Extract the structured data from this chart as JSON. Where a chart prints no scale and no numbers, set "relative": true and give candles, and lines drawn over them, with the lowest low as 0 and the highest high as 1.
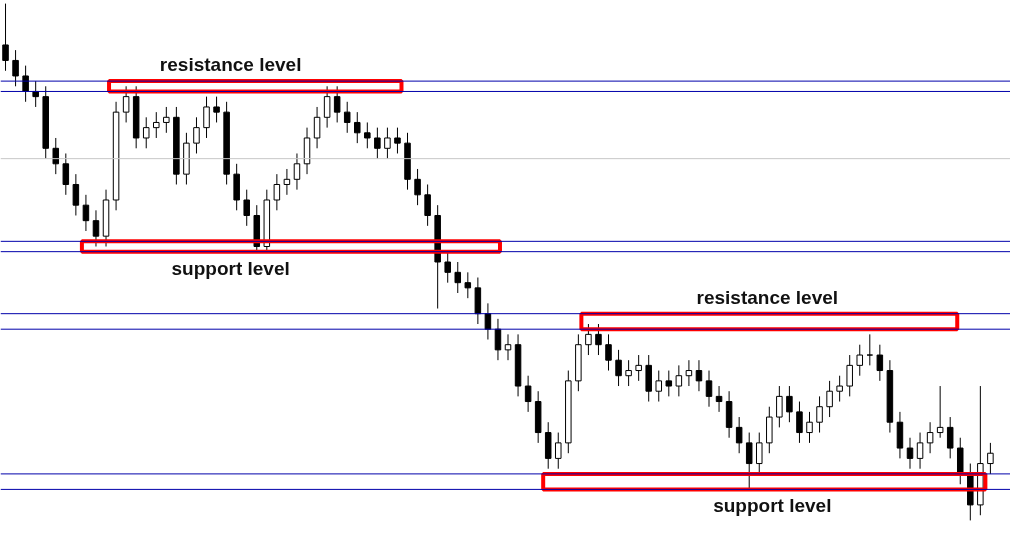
{
  "chart_data": {
    "type": "candlestick",
    "relative": true,
    "tick_labels": false,
    "grid": false,
    "categories": [
      null,
      null,
      null,
      null,
      null,
      null,
      null,
      null,
      null,
      null,
      null,
      null,
      null,
      null,
      null,
      null,
      null,
      null,
      null,
      null,
      null,
      null,
      null,
      null,
      null,
      null,
      null,
      null,
      null,
      null,
      null,
      null,
      null,
      null,
      null,
      null,
      null,
      null,
      null,
      null,
      null,
      null,
      null,
      null,
      null,
      null,
      null,
      null,
      null,
      null,
      null,
      null,
      null,
      null,
      null,
      null,
      null,
      null,
      null,
      null,
      null,
      null,
      null,
      null,
      null,
      null,
      null,
      null,
      null,
      null,
      null,
      null,
      null,
      null,
      null,
      null,
      null,
      null,
      null,
      null,
      null,
      null,
      null,
      null,
      null,
      null,
      null,
      null,
      null,
      null,
      null,
      null,
      null,
      null,
      null,
      null,
      null,
      null,
      null
    ],
    "ohlc": [
      [
        0.92,
        1.0,
        0.87,
        0.89
      ],
      [
        0.89,
        0.91,
        0.84,
        0.86
      ],
      [
        0.86,
        0.88,
        0.81,
        0.83
      ],
      [
        0.83,
        0.85,
        0.8,
        0.82
      ],
      [
        0.82,
        0.84,
        0.7,
        0.72
      ],
      [
        0.72,
        0.74,
        0.67,
        0.69
      ],
      [
        0.69,
        0.71,
        0.63,
        0.65
      ],
      [
        0.65,
        0.67,
        0.59,
        0.61
      ],
      [
        0.61,
        0.63,
        0.56,
        0.58
      ],
      [
        0.58,
        0.6,
        0.53,
        0.55
      ],
      [
        0.55,
        0.64,
        0.53,
        0.62
      ],
      [
        0.62,
        0.81,
        0.6,
        0.79
      ],
      [
        0.79,
        0.84,
        0.77,
        0.82
      ],
      [
        0.82,
        0.84,
        0.72,
        0.74
      ],
      [
        0.74,
        0.78,
        0.72,
        0.76
      ],
      [
        0.76,
        0.79,
        0.74,
        0.77
      ],
      [
        0.77,
        0.8,
        0.75,
        0.78
      ],
      [
        0.78,
        0.8,
        0.65,
        0.67
      ],
      [
        0.67,
        0.75,
        0.65,
        0.73
      ],
      [
        0.73,
        0.78,
        0.71,
        0.76
      ],
      [
        0.76,
        0.82,
        0.74,
        0.8
      ],
      [
        0.8,
        0.82,
        0.77,
        0.79
      ],
      [
        0.79,
        0.81,
        0.65,
        0.67
      ],
      [
        0.67,
        0.69,
        0.6,
        0.62
      ],
      [
        0.62,
        0.64,
        0.57,
        0.59
      ],
      [
        0.59,
        0.61,
        0.52,
        0.53
      ],
      [
        0.53,
        0.64,
        0.52,
        0.62
      ],
      [
        0.62,
        0.67,
        0.6,
        0.65
      ],
      [
        0.65,
        0.68,
        0.63,
        0.66
      ],
      [
        0.66,
        0.71,
        0.64,
        0.69
      ],
      [
        0.69,
        0.76,
        0.67,
        0.74
      ],
      [
        0.74,
        0.8,
        0.72,
        0.78
      ],
      [
        0.78,
        0.84,
        0.76,
        0.82
      ],
      [
        0.82,
        0.84,
        0.77,
        0.79
      ],
      [
        0.79,
        0.81,
        0.75,
        0.77
      ],
      [
        0.77,
        0.79,
        0.73,
        0.75
      ],
      [
        0.75,
        0.77,
        0.72,
        0.74
      ],
      [
        0.74,
        0.76,
        0.7,
        0.72
      ],
      [
        0.72,
        0.76,
        0.7,
        0.74
      ],
      [
        0.74,
        0.76,
        0.71,
        0.73
      ],
      [
        0.73,
        0.75,
        0.64,
        0.66
      ],
      [
        0.66,
        0.68,
        0.61,
        0.63
      ],
      [
        0.63,
        0.65,
        0.57,
        0.59
      ],
      [
        0.59,
        0.61,
        0.41,
        0.5
      ],
      [
        0.5,
        0.52,
        0.46,
        0.48
      ],
      [
        0.48,
        0.5,
        0.44,
        0.46
      ],
      [
        0.46,
        0.48,
        0.43,
        0.45
      ],
      [
        0.45,
        0.47,
        0.38,
        0.4
      ],
      [
        0.4,
        0.42,
        0.35,
        0.37
      ],
      [
        0.37,
        0.39,
        0.31,
        0.33
      ],
      [
        0.33,
        0.36,
        0.31,
        0.34
      ],
      [
        0.34,
        0.36,
        0.24,
        0.26
      ],
      [
        0.26,
        0.28,
        0.21,
        0.23
      ],
      [
        0.23,
        0.25,
        0.15,
        0.17
      ],
      [
        0.17,
        0.19,
        0.1,
        0.12
      ],
      [
        0.12,
        0.17,
        0.1,
        0.15
      ],
      [
        0.15,
        0.29,
        0.13,
        0.27
      ],
      [
        0.27,
        0.36,
        0.25,
        0.34
      ],
      [
        0.34,
        0.38,
        0.32,
        0.36
      ],
      [
        0.36,
        0.38,
        0.32,
        0.34
      ],
      [
        0.34,
        0.36,
        0.29,
        0.31
      ],
      [
        0.31,
        0.33,
        0.26,
        0.28
      ],
      [
        0.28,
        0.31,
        0.26,
        0.29
      ],
      [
        0.29,
        0.32,
        0.27,
        0.3
      ],
      [
        0.3,
        0.32,
        0.23,
        0.25
      ],
      [
        0.25,
        0.29,
        0.23,
        0.27
      ],
      [
        0.27,
        0.29,
        0.24,
        0.26
      ],
      [
        0.26,
        0.3,
        0.24,
        0.28
      ],
      [
        0.28,
        0.31,
        0.26,
        0.29
      ],
      [
        0.29,
        0.31,
        0.25,
        0.27
      ],
      [
        0.27,
        0.29,
        0.22,
        0.24
      ],
      [
        0.24,
        0.26,
        0.21,
        0.23
      ],
      [
        0.23,
        0.25,
        0.16,
        0.18
      ],
      [
        0.18,
        0.2,
        0.13,
        0.15
      ],
      [
        0.15,
        0.17,
        0.06,
        0.11
      ],
      [
        0.11,
        0.17,
        0.09,
        0.15
      ],
      [
        0.15,
        0.22,
        0.13,
        0.2
      ],
      [
        0.2,
        0.26,
        0.18,
        0.24
      ],
      [
        0.24,
        0.26,
        0.19,
        0.21
      ],
      [
        0.21,
        0.23,
        0.15,
        0.17
      ],
      [
        0.17,
        0.21,
        0.15,
        0.19
      ],
      [
        0.19,
        0.24,
        0.17,
        0.22
      ],
      [
        0.22,
        0.27,
        0.2,
        0.25
      ],
      [
        0.25,
        0.28,
        0.23,
        0.26
      ],
      [
        0.26,
        0.32,
        0.24,
        0.3
      ],
      [
        0.3,
        0.34,
        0.28,
        0.32
      ],
      [
        0.32,
        0.36,
        0.3,
        0.32
      ],
      [
        0.32,
        0.34,
        0.27,
        0.29
      ],
      [
        0.29,
        0.31,
        0.17,
        0.19
      ],
      [
        0.19,
        0.21,
        0.12,
        0.14
      ],
      [
        0.14,
        0.16,
        0.1,
        0.12
      ],
      [
        0.12,
        0.17,
        0.1,
        0.15
      ],
      [
        0.15,
        0.19,
        0.13,
        0.17
      ],
      [
        0.17,
        0.26,
        0.16,
        0.18
      ],
      [
        0.18,
        0.2,
        0.12,
        0.14
      ],
      [
        0.14,
        0.16,
        0.07,
        0.09
      ],
      [
        0.09,
        0.11,
        0.0,
        0.03
      ],
      [
        0.03,
        0.26,
        0.01,
        0.11
      ],
      [
        0.11,
        0.15,
        0.09,
        0.13
      ]
    ],
    "ref_lines": [
      {
        "axis": "y",
        "value": 0.85,
        "color": "#0000aa"
      },
      {
        "axis": "y",
        "value": 0.83,
        "color": "#0000aa"
      },
      {
        "axis": "y",
        "value": 0.7,
        "color": "#c8c8c8"
      },
      {
        "axis": "y",
        "value": 0.54,
        "color": "#0000aa"
      },
      {
        "axis": "y",
        "value": 0.52,
        "color": "#0000aa"
      },
      {
        "axis": "y",
        "value": 0.4,
        "color": "#0000aa"
      },
      {
        "axis": "y",
        "value": 0.37,
        "color": "#0000aa"
      },
      {
        "axis": "y",
        "value": 0.09,
        "color": "#0000aa"
      },
      {
        "axis": "y",
        "value": 0.06,
        "color": "#0000aa"
      }
    ],
    "annotations": [
      {
        "text": "resistance level",
        "y": 0.85
      },
      {
        "text": "support level",
        "y": 0.52
      },
      {
        "text": "resistance level",
        "y": 0.4
      },
      {
        "text": "support level",
        "y": 0.06
      }
    ]
  }
}
